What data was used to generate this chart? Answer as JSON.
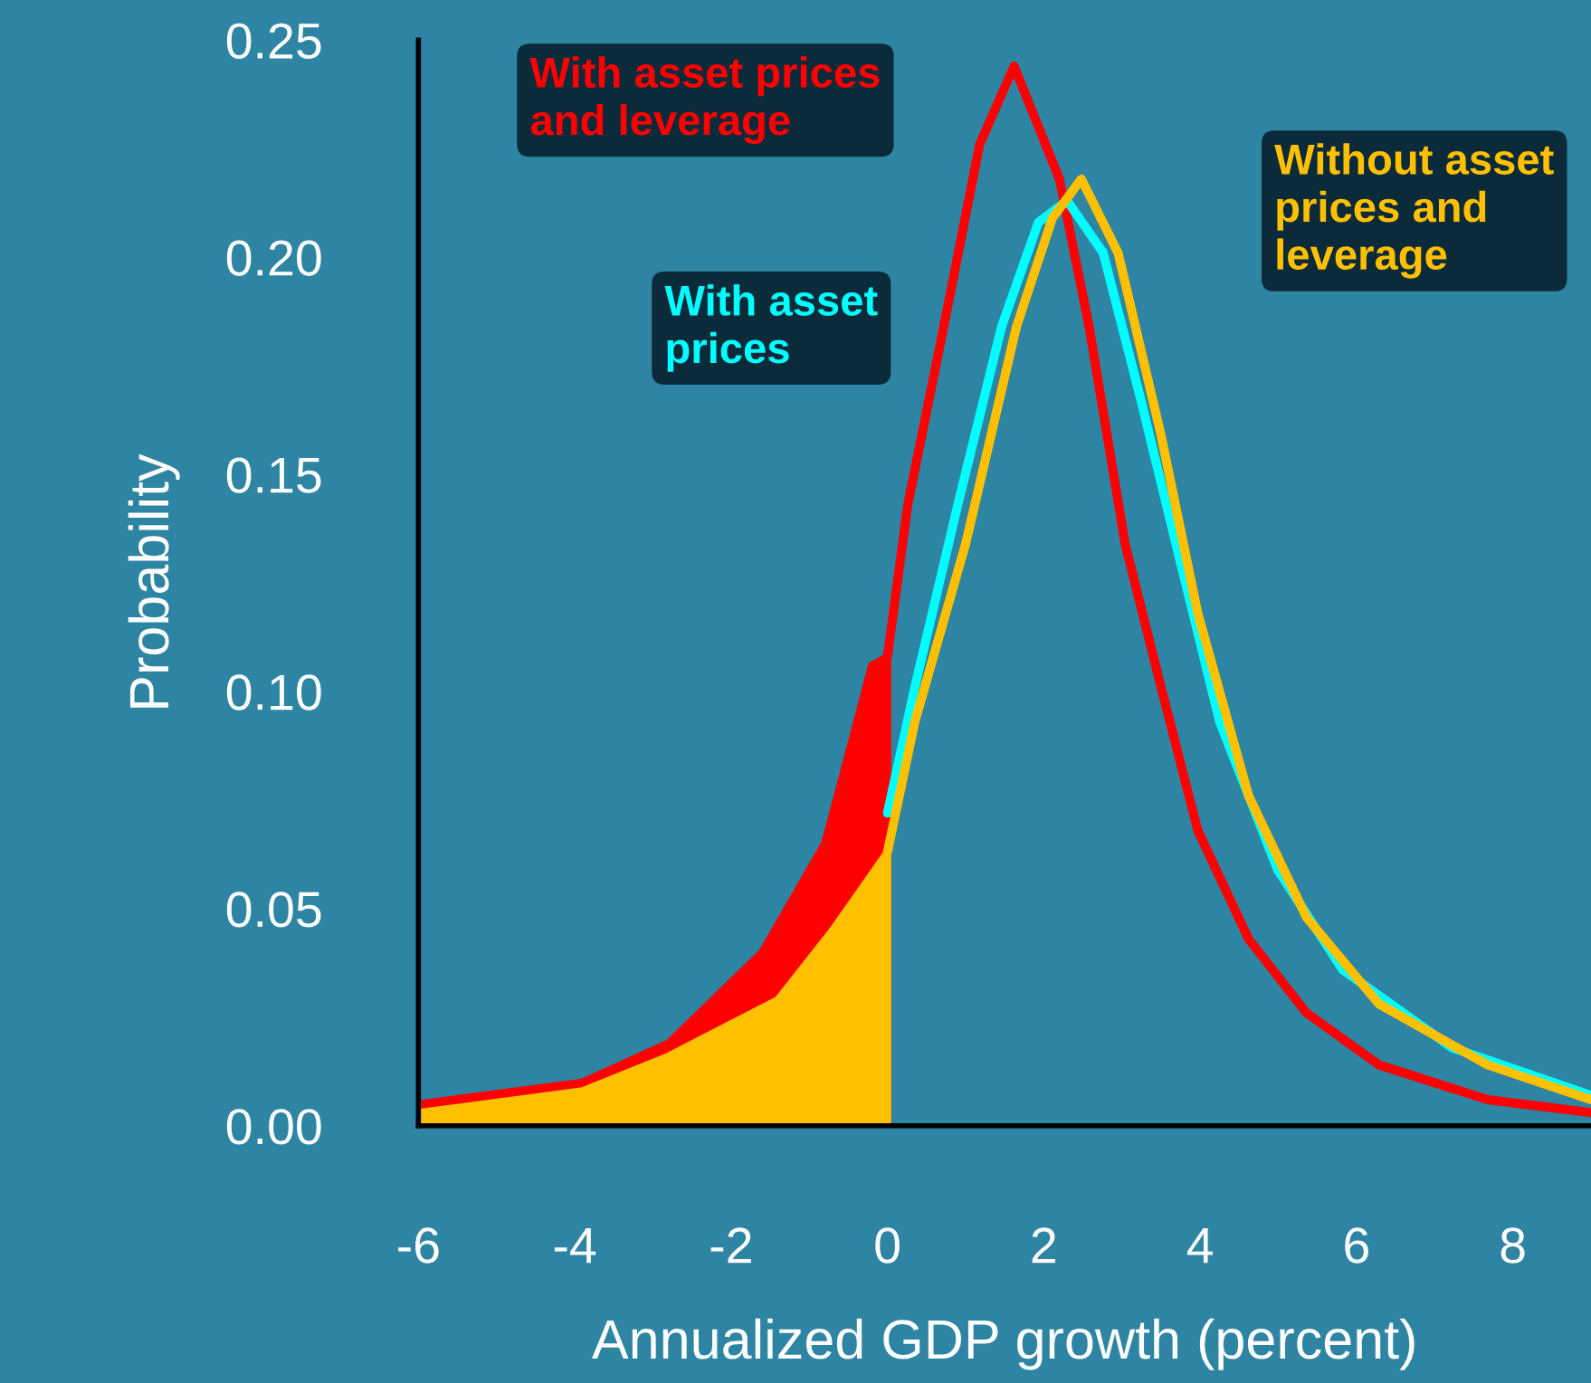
{
  "chart_data": {
    "type": "line",
    "xlabel": "Annualized GDP growth (percent)",
    "ylabel": "Probability",
    "xlim": [
      -6,
      9
    ],
    "xticks": [
      -6,
      -4,
      -2,
      0,
      2,
      4,
      6,
      8
    ],
    "ylim": [
      0,
      0.25
    ],
    "yticks": [
      {
        "value": 0,
        "label": "0.00"
      },
      {
        "value": 0.05,
        "label": "0.05"
      },
      {
        "value": 0.1,
        "label": "0.10"
      },
      {
        "value": 0.15,
        "label": "0.15"
      },
      {
        "value": 0.2,
        "label": "0.20"
      },
      {
        "value": 0.25,
        "label": "0.25"
      }
    ],
    "grid": false,
    "legend": false,
    "marker": "none",
    "line_style": "solid",
    "series": [
      {
        "type": "area",
        "color": "#ff0000",
        "x": [
          -6,
          -3.9,
          -2.8,
          -1.6,
          -0.8,
          -0.2,
          0
        ],
        "values": [
          0.005,
          0.01,
          0.019,
          0.04,
          0.065,
          0.106,
          0.108
        ]
      },
      {
        "type": "area",
        "color": "#ffc000",
        "x": [
          -6,
          -3.9,
          -2.8,
          -1.4,
          -0.7,
          0
        ],
        "values": [
          0.003,
          0.008,
          0.016,
          0.029,
          0.045,
          0.063
        ]
      },
      {
        "name": "With asset prices and leverage",
        "color": "#ff0000",
        "x": [
          0,
          0.26,
          0.72,
          1.18,
          1.62,
          2.2,
          2.58,
          3.04,
          3.5,
          3.97,
          4.62,
          5.36,
          6.29,
          7.68,
          9
        ],
        "values": [
          0.108,
          0.143,
          0.184,
          0.226,
          0.244,
          0.218,
          0.184,
          0.134,
          0.101,
          0.068,
          0.043,
          0.026,
          0.014,
          0.006,
          0.003
        ]
      },
      {
        "name": "With asset prices",
        "color": "#00ffff",
        "x": [
          0,
          0.35,
          0.9,
          1.46,
          1.93,
          2.3,
          2.76,
          3.23,
          3.69,
          4.25,
          4.99,
          5.82,
          7.22,
          9
        ],
        "values": [
          0.072,
          0.101,
          0.143,
          0.184,
          0.208,
          0.213,
          0.201,
          0.168,
          0.134,
          0.093,
          0.059,
          0.036,
          0.018,
          0.007
        ]
      },
      {
        "name": "Without asset prices and leverage",
        "color": "#ffc000",
        "x": [
          0,
          0.35,
          1.0,
          1.65,
          2.11,
          2.48,
          2.95,
          3.5,
          3.97,
          4.62,
          5.36,
          6.29,
          7.68,
          9
        ],
        "values": [
          0.063,
          0.093,
          0.134,
          0.184,
          0.209,
          0.218,
          0.201,
          0.159,
          0.118,
          0.076,
          0.048,
          0.028,
          0.014,
          0.006
        ]
      }
    ]
  }
}
